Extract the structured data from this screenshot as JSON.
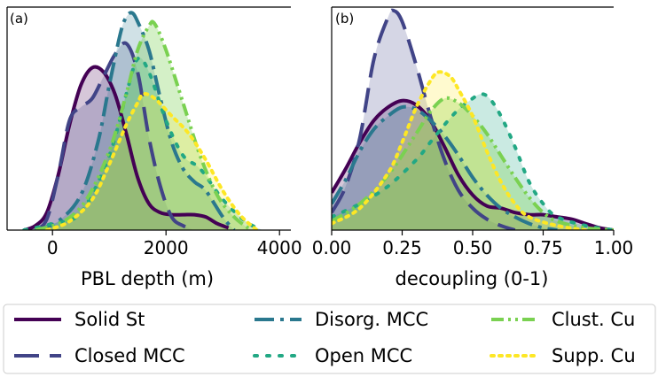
{
  "chart_data": [
    {
      "type": "area",
      "panel_label": "(a)",
      "xlabel": "PBL depth (m)",
      "ylabel": "",
      "xlim": [
        -800,
        4200
      ],
      "ylim": [
        0,
        1.0
      ],
      "xticks": [
        0,
        2000,
        4000
      ],
      "xtick_labels": [
        "0",
        "2000",
        "4000"
      ],
      "yticks": [],
      "grid": false,
      "series": [
        {
          "name": "Solid St",
          "peak": 760,
          "x": [
            -500,
            -300,
            -100,
            100,
            300,
            500,
            700,
            900,
            1100,
            1300,
            1500,
            1700,
            1900,
            2100,
            2300,
            2500,
            2700,
            2900,
            3100
          ],
          "y": [
            0.0,
            0.02,
            0.08,
            0.25,
            0.48,
            0.66,
            0.74,
            0.72,
            0.62,
            0.44,
            0.24,
            0.12,
            0.08,
            0.07,
            0.07,
            0.07,
            0.06,
            0.03,
            0.01
          ]
        },
        {
          "name": "Closed MCC",
          "peak": 1350,
          "x": [
            -300,
            -100,
            100,
            300,
            500,
            700,
            900,
            1100,
            1300,
            1500,
            1700,
            1900,
            2100,
            2300,
            2500
          ],
          "y": [
            0.0,
            0.05,
            0.25,
            0.5,
            0.56,
            0.6,
            0.7,
            0.8,
            0.85,
            0.72,
            0.42,
            0.2,
            0.06,
            0.02,
            0.0
          ]
        },
        {
          "name": "Disorg. MCC",
          "peak": 1390,
          "x": [
            -300,
            100,
            500,
            800,
            1000,
            1200,
            1300,
            1400,
            1500,
            1700,
            1900,
            2100,
            2300,
            2500,
            2700,
            3000,
            3200
          ],
          "y": [
            0.0,
            0.04,
            0.16,
            0.4,
            0.66,
            0.9,
            0.97,
            0.99,
            0.95,
            0.82,
            0.6,
            0.4,
            0.28,
            0.22,
            0.18,
            0.06,
            0.0
          ]
        },
        {
          "name": "Open MCC",
          "peak": 1500,
          "x": [
            -500,
            0,
            500,
            1000,
            1300,
            1500,
            1700,
            2000,
            2300,
            2600,
            3000,
            3400,
            3700
          ],
          "y": [
            0.0,
            0.03,
            0.08,
            0.34,
            0.62,
            0.78,
            0.72,
            0.5,
            0.34,
            0.28,
            0.14,
            0.04,
            0.0
          ]
        },
        {
          "name": "Clust. Cu",
          "peak": 1780,
          "x": [
            -300,
            200,
            600,
            1000,
            1300,
            1500,
            1700,
            1800,
            2000,
            2300,
            2600,
            2900,
            3200,
            3500
          ],
          "y": [
            0.0,
            0.04,
            0.14,
            0.36,
            0.62,
            0.82,
            0.93,
            0.94,
            0.82,
            0.58,
            0.34,
            0.16,
            0.06,
            0.0
          ]
        },
        {
          "name": "Supp. Cu",
          "peak": 1600,
          "x": [
            -100,
            300,
            700,
            1000,
            1300,
            1500,
            1600,
            1800,
            2100,
            2400,
            2700,
            3000,
            3300,
            3600
          ],
          "y": [
            0.0,
            0.04,
            0.14,
            0.3,
            0.48,
            0.58,
            0.62,
            0.6,
            0.52,
            0.44,
            0.32,
            0.18,
            0.07,
            0.0
          ]
        }
      ]
    },
    {
      "type": "area",
      "panel_label": "(b)",
      "xlabel": "decoupling (0-1)",
      "ylabel": "",
      "xlim": [
        0.0,
        1.0
      ],
      "ylim": [
        0,
        1.0
      ],
      "xticks": [
        0.0,
        0.25,
        0.5,
        0.75,
        1.0
      ],
      "xtick_labels": [
        "0.00",
        "0.25",
        "0.50",
        "0.75",
        "1.00"
      ],
      "yticks": [],
      "grid": false,
      "series": [
        {
          "name": "Solid St",
          "peak": 0.27,
          "x": [
            0.0,
            0.05,
            0.1,
            0.15,
            0.2,
            0.25,
            0.3,
            0.35,
            0.4,
            0.45,
            0.5,
            0.55,
            0.6,
            0.65,
            0.7,
            0.75,
            0.8,
            0.85,
            0.9,
            0.95,
            1.0
          ],
          "y": [
            0.17,
            0.28,
            0.4,
            0.5,
            0.56,
            0.59,
            0.57,
            0.5,
            0.38,
            0.25,
            0.16,
            0.11,
            0.1,
            0.08,
            0.07,
            0.07,
            0.06,
            0.05,
            0.03,
            0.01,
            0.0
          ]
        },
        {
          "name": "Closed MCC",
          "peak": 0.22,
          "x": [
            0.0,
            0.05,
            0.1,
            0.15,
            0.2,
            0.22,
            0.25,
            0.3,
            0.35,
            0.4,
            0.45,
            0.5,
            0.55,
            0.6,
            0.65
          ],
          "y": [
            0.08,
            0.2,
            0.42,
            0.78,
            0.97,
            1.0,
            0.95,
            0.75,
            0.52,
            0.32,
            0.18,
            0.1,
            0.05,
            0.02,
            0.0
          ]
        },
        {
          "name": "Disorg. MCC",
          "peak": 0.28,
          "x": [
            0.0,
            0.05,
            0.1,
            0.15,
            0.2,
            0.25,
            0.3,
            0.35,
            0.4,
            0.45,
            0.5,
            0.55,
            0.6,
            0.65,
            0.7,
            0.75,
            0.8
          ],
          "y": [
            0.12,
            0.23,
            0.36,
            0.46,
            0.52,
            0.56,
            0.55,
            0.5,
            0.43,
            0.34,
            0.24,
            0.16,
            0.1,
            0.06,
            0.03,
            0.01,
            0.0
          ]
        },
        {
          "name": "Open MCC",
          "peak": 0.53,
          "x": [
            0.0,
            0.1,
            0.2,
            0.3,
            0.35,
            0.4,
            0.45,
            0.5,
            0.53,
            0.56,
            0.6,
            0.65,
            0.7,
            0.75,
            0.8,
            0.9,
            1.0
          ],
          "y": [
            0.06,
            0.12,
            0.2,
            0.32,
            0.4,
            0.48,
            0.55,
            0.6,
            0.62,
            0.6,
            0.52,
            0.38,
            0.22,
            0.12,
            0.06,
            0.02,
            0.0
          ]
        },
        {
          "name": "Clust. Cu",
          "peak": 0.41,
          "x": [
            0.0,
            0.1,
            0.2,
            0.3,
            0.35,
            0.4,
            0.45,
            0.5,
            0.55,
            0.6,
            0.65,
            0.7,
            0.75,
            0.8,
            0.9,
            1.0
          ],
          "y": [
            0.04,
            0.12,
            0.25,
            0.44,
            0.54,
            0.6,
            0.58,
            0.52,
            0.44,
            0.34,
            0.24,
            0.15,
            0.08,
            0.04,
            0.01,
            0.0
          ]
        },
        {
          "name": "Supp. Cu",
          "peak": 0.38,
          "x": [
            0.0,
            0.1,
            0.2,
            0.25,
            0.3,
            0.35,
            0.38,
            0.42,
            0.45,
            0.5,
            0.55,
            0.6,
            0.65,
            0.7,
            0.8,
            0.9
          ],
          "y": [
            0.03,
            0.1,
            0.26,
            0.4,
            0.56,
            0.68,
            0.72,
            0.7,
            0.64,
            0.52,
            0.36,
            0.22,
            0.12,
            0.06,
            0.02,
            0.0
          ]
        }
      ]
    }
  ],
  "series_style": {
    "Solid St": {
      "color": "#440154",
      "fill": "#440154",
      "fill_opacity": 0.22,
      "dash": "none"
    },
    "Closed MCC": {
      "color": "#414487",
      "fill": "#414487",
      "fill_opacity": 0.22,
      "dash": "28,12"
    },
    "Disorg. MCC": {
      "color": "#2a788e",
      "fill": "#2a788e",
      "fill_opacity": 0.22,
      "dash": "22,7,4,7"
    },
    "Open MCC": {
      "color": "#22a884",
      "fill": "#22a884",
      "fill_opacity": 0.24,
      "dash": "3,11"
    },
    "Clust. Cu": {
      "color": "#7ad151",
      "fill": "#7ad151",
      "fill_opacity": 0.32,
      "dash": "14,5,3,5,3,5"
    },
    "Supp. Cu": {
      "color": "#fde725",
      "fill": "#fde725",
      "fill_opacity": 0.22,
      "dash": "3,6"
    }
  },
  "legend": {
    "placement": "bottom",
    "entries": [
      "Solid St",
      "Closed MCC",
      "Disorg. MCC",
      "Open MCC",
      "Clust. Cu",
      "Supp. Cu"
    ]
  }
}
